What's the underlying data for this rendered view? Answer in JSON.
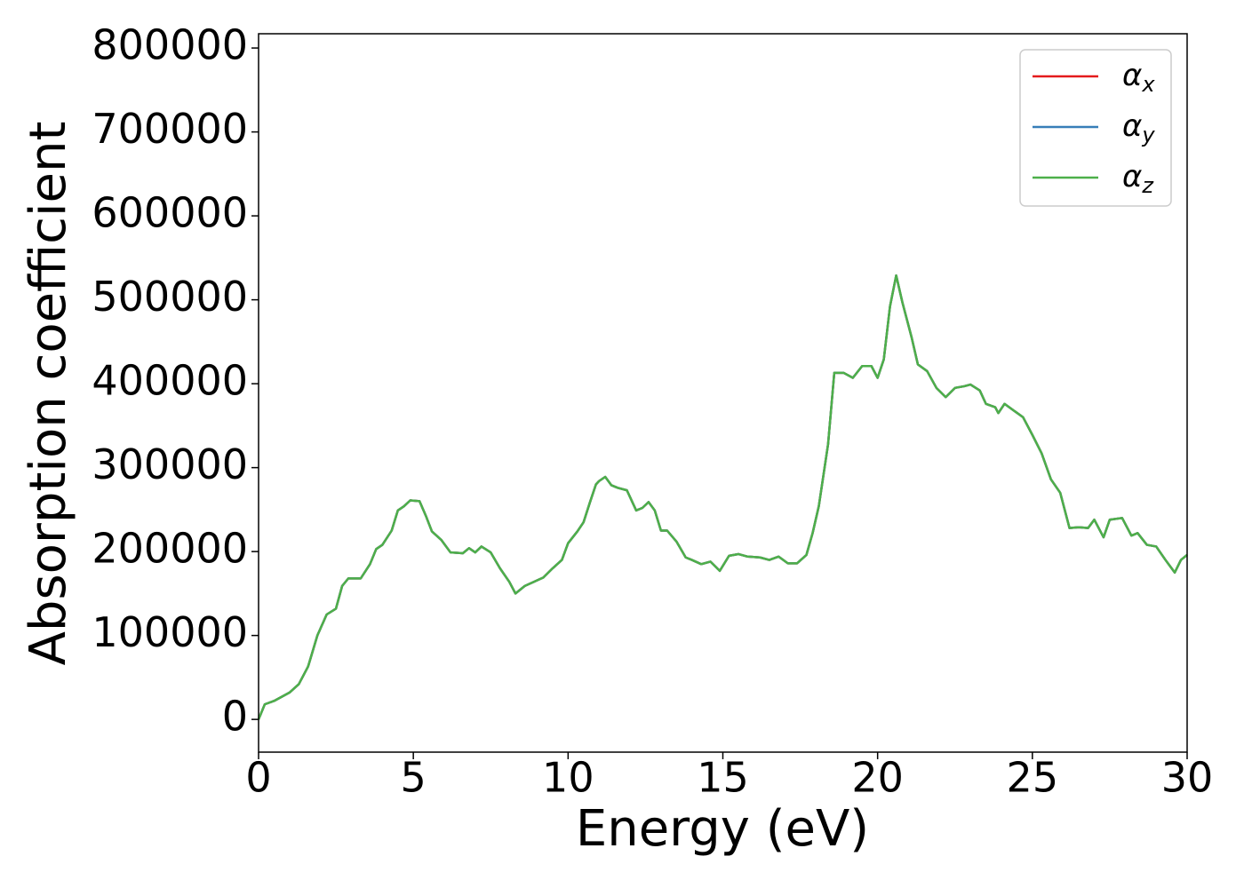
{
  "chart_data": {
    "type": "line",
    "xlabel": "Energy (eV)",
    "ylabel": "Absorption coefficient",
    "x": [
      0,
      0.2,
      0.5,
      1.0,
      1.3,
      1.6,
      1.9,
      2.2,
      2.5,
      2.7,
      2.9,
      3.3,
      3.6,
      3.8,
      4.0,
      4.3,
      4.5,
      4.7,
      4.9,
      5.2,
      5.4,
      5.6,
      5.9,
      6.2,
      6.6,
      6.8,
      7.0,
      7.2,
      7.5,
      7.8,
      8.1,
      8.3,
      8.6,
      8.9,
      9.2,
      9.5,
      9.8,
      10.0,
      10.3,
      10.5,
      10.7,
      10.9,
      11.0,
      11.2,
      11.4,
      11.6,
      11.9,
      12.2,
      12.4,
      12.6,
      12.8,
      13.0,
      13.2,
      13.5,
      13.8,
      14.0,
      14.3,
      14.6,
      14.9,
      15.2,
      15.5,
      15.8,
      16.2,
      16.5,
      16.8,
      17.1,
      17.4,
      17.7,
      17.9,
      18.1,
      18.4,
      18.6,
      18.9,
      19.2,
      19.5,
      19.8,
      20.0,
      20.2,
      20.4,
      20.6,
      20.8,
      21.1,
      21.3,
      21.6,
      21.9,
      22.2,
      22.5,
      22.8,
      23.0,
      23.3,
      23.5,
      23.8,
      23.9,
      24.1,
      24.4,
      24.7,
      25.0,
      25.3,
      25.6,
      25.9,
      26.2,
      26.5,
      26.8,
      27.0,
      27.3,
      27.5,
      27.9,
      28.2,
      28.4,
      28.7,
      29.0,
      29.3,
      29.6,
      29.8,
      30.0
    ],
    "series": [
      {
        "name": "αx",
        "color": "#e41a1c",
        "values": [
          0,
          18000,
          22000,
          32000,
          42000,
          63000,
          100000,
          125000,
          132000,
          159000,
          168000,
          168000,
          185000,
          203000,
          208000,
          225000,
          249000,
          254000,
          261000,
          260000,
          243000,
          224000,
          214000,
          199000,
          198000,
          204000,
          199000,
          206000,
          199000,
          180000,
          164000,
          150000,
          159000,
          164000,
          169000,
          180000,
          190000,
          210000,
          224000,
          235000,
          258000,
          280000,
          284000,
          289000,
          279000,
          276000,
          273000,
          249000,
          252000,
          259000,
          249000,
          225000,
          225000,
          212000,
          193000,
          190000,
          185000,
          188000,
          177000,
          195000,
          197000,
          194000,
          193000,
          190000,
          194000,
          186000,
          186000,
          196000,
          222000,
          254000,
          328000,
          413000,
          413000,
          407000,
          421000,
          421000,
          407000,
          429000,
          492000,
          529000,
          497000,
          455000,
          423000,
          415000,
          395000,
          384000,
          395000,
          397000,
          399000,
          392000,
          376000,
          372000,
          365000,
          376000,
          368000,
          360000,
          339000,
          317000,
          286000,
          270000,
          228000,
          229000,
          228000,
          238000,
          217000,
          238000,
          240000,
          219000,
          222000,
          208000,
          206000,
          190000,
          175000,
          190000,
          196000
        ]
      },
      {
        "name": "αy",
        "color": "#377eb8",
        "values": [
          0,
          18000,
          22000,
          32000,
          42000,
          63000,
          100000,
          125000,
          132000,
          159000,
          168000,
          168000,
          185000,
          203000,
          208000,
          225000,
          249000,
          254000,
          261000,
          260000,
          243000,
          224000,
          214000,
          199000,
          198000,
          204000,
          199000,
          206000,
          199000,
          180000,
          164000,
          150000,
          159000,
          164000,
          169000,
          180000,
          190000,
          210000,
          224000,
          235000,
          258000,
          280000,
          284000,
          289000,
          279000,
          276000,
          273000,
          249000,
          252000,
          259000,
          249000,
          225000,
          225000,
          212000,
          193000,
          190000,
          185000,
          188000,
          177000,
          195000,
          197000,
          194000,
          193000,
          190000,
          194000,
          186000,
          186000,
          196000,
          222000,
          254000,
          328000,
          413000,
          413000,
          407000,
          421000,
          421000,
          407000,
          429000,
          492000,
          529000,
          497000,
          455000,
          423000,
          415000,
          395000,
          384000,
          395000,
          397000,
          399000,
          392000,
          376000,
          372000,
          365000,
          376000,
          368000,
          360000,
          339000,
          317000,
          286000,
          270000,
          228000,
          229000,
          228000,
          238000,
          217000,
          238000,
          240000,
          219000,
          222000,
          208000,
          206000,
          190000,
          175000,
          190000,
          196000
        ]
      },
      {
        "name": "αz",
        "color": "#4daf4a",
        "values": [
          0,
          18000,
          22000,
          32000,
          42000,
          63000,
          100000,
          125000,
          132000,
          159000,
          168000,
          168000,
          185000,
          203000,
          208000,
          225000,
          249000,
          254000,
          261000,
          260000,
          243000,
          224000,
          214000,
          199000,
          198000,
          204000,
          199000,
          206000,
          199000,
          180000,
          164000,
          150000,
          159000,
          164000,
          169000,
          180000,
          190000,
          210000,
          224000,
          235000,
          258000,
          280000,
          284000,
          289000,
          279000,
          276000,
          273000,
          249000,
          252000,
          259000,
          249000,
          225000,
          225000,
          212000,
          193000,
          190000,
          185000,
          188000,
          177000,
          195000,
          197000,
          194000,
          193000,
          190000,
          194000,
          186000,
          186000,
          196000,
          222000,
          254000,
          328000,
          413000,
          413000,
          407000,
          421000,
          421000,
          407000,
          429000,
          492000,
          529000,
          497000,
          455000,
          423000,
          415000,
          395000,
          384000,
          395000,
          397000,
          399000,
          392000,
          376000,
          372000,
          365000,
          376000,
          368000,
          360000,
          339000,
          317000,
          286000,
          270000,
          228000,
          229000,
          228000,
          238000,
          217000,
          238000,
          240000,
          219000,
          222000,
          208000,
          206000,
          190000,
          175000,
          190000,
          196000
        ]
      }
    ],
    "xlim": [
      0,
      30
    ],
    "xticks": [
      0,
      5,
      10,
      15,
      20,
      25,
      30
    ],
    "ylim": [
      -39000,
      817000
    ],
    "yticks": [
      0,
      100000,
      200000,
      300000,
      400000,
      500000,
      600000,
      700000,
      800000
    ],
    "legend": "upper right"
  }
}
